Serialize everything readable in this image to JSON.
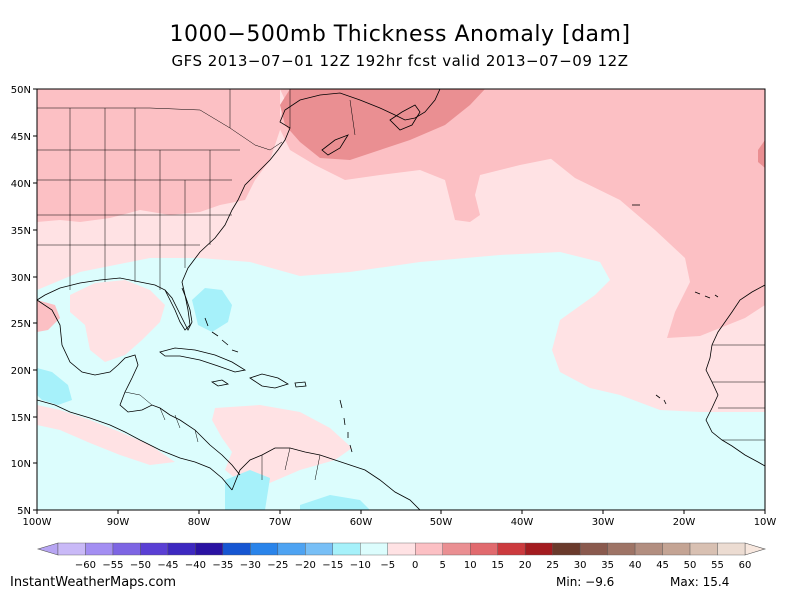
{
  "title": "1000−500mb Thickness Anomaly [dam]",
  "subtitle": "GFS 2013−07−01 12Z 192hr fcst valid 2013−07−09 12Z",
  "map": {
    "lat_labels": [
      "50N",
      "45N",
      "40N",
      "35N",
      "30N",
      "25N",
      "20N",
      "15N",
      "10N",
      "5N"
    ],
    "lon_labels": [
      "100W",
      "90W",
      "80W",
      "70W",
      "60W",
      "50W",
      "40W",
      "30W",
      "20W",
      "10W"
    ]
  },
  "legend": {
    "labels": [
      "−60",
      "−55",
      "−50",
      "−45",
      "−40",
      "−35",
      "−30",
      "−25",
      "−20",
      "−15",
      "−10",
      "−5",
      "0",
      "5",
      "10",
      "15",
      "20",
      "25",
      "30",
      "35",
      "40",
      "45",
      "50",
      "55",
      "60"
    ],
    "colors": [
      "#c9b9f7",
      "#a38ef2",
      "#7d65e3",
      "#5a3fd4",
      "#3d28c0",
      "#2a12a2",
      "#1656d2",
      "#2a84ea",
      "#4ea3f2",
      "#78bff6",
      "#a6f1fa",
      "#dcfdfd",
      "#ffe2e4",
      "#fcc0c4",
      "#ea8f92",
      "#e16a6e",
      "#cc3a3e",
      "#a31c20",
      "#6a3a2c",
      "#8a5a4e",
      "#9e7466",
      "#b28e80",
      "#c4a494",
      "#d8c0b2",
      "#ecdcd2"
    ],
    "low_arrow_color": "#b7a5f3",
    "high_arrow_color": "#f7e7de"
  },
  "footer": {
    "credit": "InstantWeatherMaps.com",
    "min": "Min:  −9.6",
    "max": "Max:  15.4"
  }
}
